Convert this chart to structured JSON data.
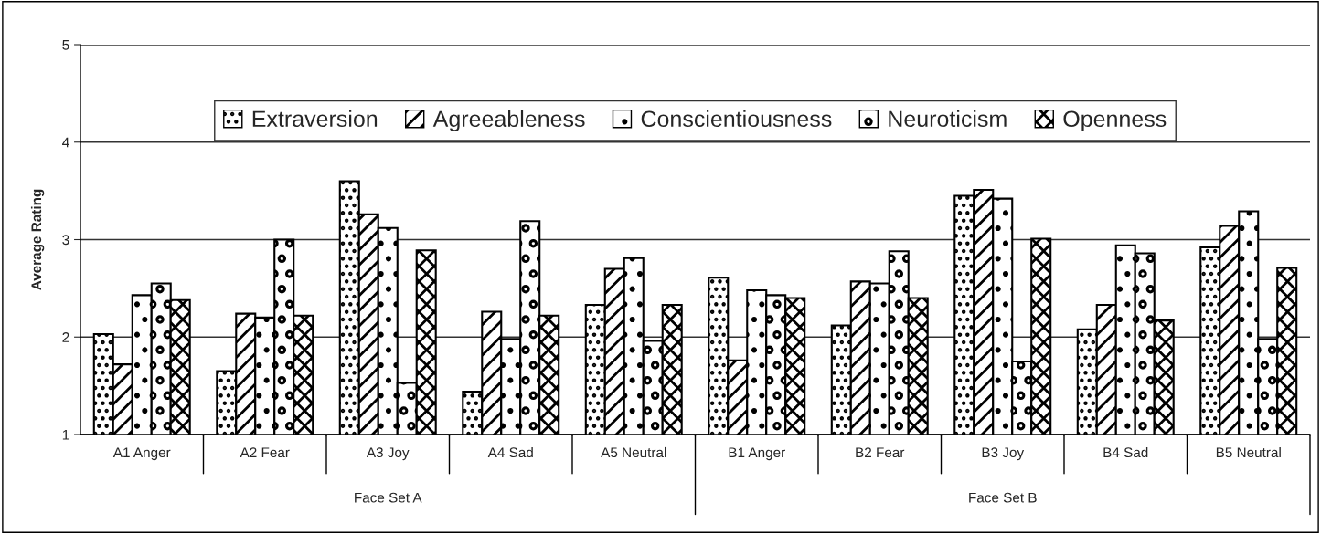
{
  "chart_data": {
    "type": "bar",
    "ylabel": "Average Rating",
    "categories": [
      "A1 Anger",
      "A2 Fear",
      "A3 Joy",
      "A4 Sad",
      "A5 Neutral",
      "B1 Anger",
      "B2 Fear",
      "B3 Joy",
      "B4 Sad",
      "B5 Neutral"
    ],
    "series": [
      {
        "name": "Extraversion",
        "color": "#000000",
        "values": [
          2.03,
          1.65,
          3.6,
          1.44,
          2.33,
          2.61,
          2.12,
          3.45,
          2.08,
          2.92
        ]
      },
      {
        "name": "Agreeableness",
        "color": "#000000",
        "values": [
          1.72,
          2.24,
          3.26,
          2.26,
          2.7,
          1.76,
          2.57,
          3.51,
          2.33,
          3.14
        ]
      },
      {
        "name": "Conscientiousness",
        "color": "#000000",
        "values": [
          2.43,
          2.2,
          3.12,
          1.98,
          2.81,
          2.48,
          2.55,
          3.42,
          2.94,
          3.29
        ]
      },
      {
        "name": "Neuroticism",
        "color": "#000000",
        "values": [
          2.55,
          3.0,
          1.53,
          3.19,
          1.96,
          2.43,
          2.88,
          1.75,
          2.86,
          1.98
        ]
      },
      {
        "name": "Openness",
        "color": "#000000",
        "values": [
          2.38,
          2.22,
          2.89,
          2.22,
          2.33,
          2.4,
          2.4,
          3.01,
          2.17,
          2.71
        ]
      }
    ],
    "annotations": [
      "Face Set A",
      "Face Set B"
    ],
    "ylim": [
      1,
      5
    ],
    "yticks": [
      1,
      2,
      3,
      4,
      5
    ],
    "grid": "y",
    "legend": "top"
  }
}
